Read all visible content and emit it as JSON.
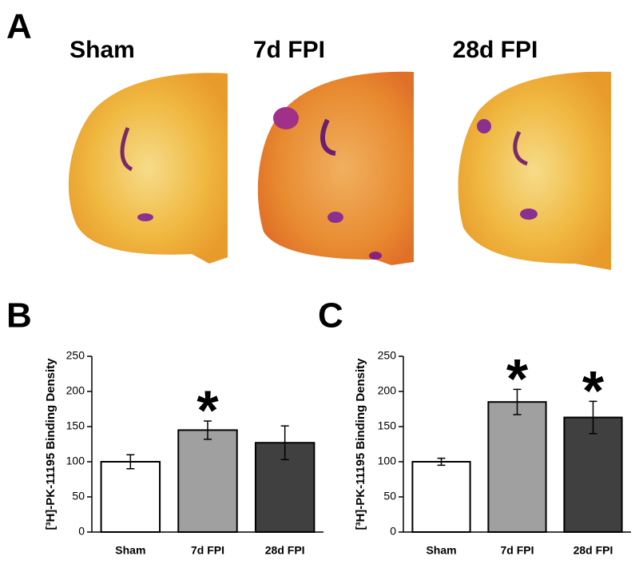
{
  "figure": {
    "panel_label": "A",
    "image_labels": [
      "Sham",
      "7d FPI",
      "28d FPI"
    ]
  },
  "chart_data": [
    {
      "type": "bar",
      "panel": "B",
      "y_label": "[³H]-PK-11195 Binding Density",
      "categories": [
        "Sham",
        "7d FPI",
        "28d FPI"
      ],
      "values": [
        100,
        145,
        127
      ],
      "errors": [
        10,
        13,
        24
      ],
      "colors": [
        "#ffffff",
        "#a0a0a0",
        "#404040"
      ],
      "annotations": [
        null,
        "*",
        null
      ],
      "ylim": [
        0,
        250
      ],
      "yticks": [
        0,
        50,
        100,
        150,
        200,
        250
      ]
    },
    {
      "type": "bar",
      "panel": "C",
      "y_label": "[³H]-PK-11195 Binding Density",
      "categories": [
        "Sham",
        "7d FPI",
        "28d FPI"
      ],
      "values": [
        100,
        185,
        163
      ],
      "errors": [
        5,
        18,
        23
      ],
      "colors": [
        "#ffffff",
        "#a0a0a0",
        "#404040"
      ],
      "annotations": [
        null,
        "*",
        "*"
      ],
      "ylim": [
        0,
        250
      ],
      "yticks": [
        0,
        50,
        100,
        150,
        200,
        250
      ]
    }
  ]
}
